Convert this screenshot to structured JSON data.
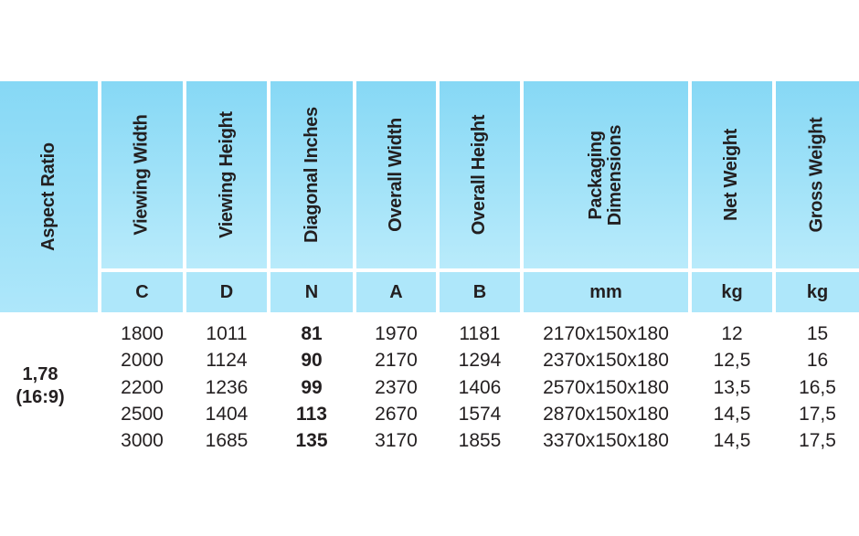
{
  "headers": {
    "aspect_ratio": "Aspect Ratio",
    "viewing_width": "Viewing Width",
    "viewing_height": "Viewing Height",
    "diagonal_inches": "Diagonal Inches",
    "overall_width": "Overall Width",
    "overall_height": "Overall Height",
    "packaging_line1": "Packaging",
    "packaging_line2": "Dimensions",
    "net_weight": "Net Weight",
    "gross_weight": "Gross Weight"
  },
  "units": {
    "viewing_width": "C",
    "viewing_height": "D",
    "diagonal_inches": "N",
    "overall_width": "A",
    "overall_height": "B",
    "packaging": "mm",
    "net_weight": "kg",
    "gross_weight": "kg"
  },
  "aspect": {
    "line1": "1,78",
    "line2": "(16:9)"
  },
  "rows": [
    {
      "vw": "1800",
      "vh": "1011",
      "diag": "81",
      "ow": "1970",
      "oh": "1181",
      "pack": "2170x150x180",
      "net": "12",
      "gross": "15"
    },
    {
      "vw": "2000",
      "vh": "1124",
      "diag": "90",
      "ow": "2170",
      "oh": "1294",
      "pack": "2370x150x180",
      "net": "12,5",
      "gross": "16"
    },
    {
      "vw": "2200",
      "vh": "1236",
      "diag": "99",
      "ow": "2370",
      "oh": "1406",
      "pack": "2570x150x180",
      "net": "13,5",
      "gross": "16,5"
    },
    {
      "vw": "2500",
      "vh": "1404",
      "diag": "113",
      "ow": "2670",
      "oh": "1574",
      "pack": "2870x150x180",
      "net": "14,5",
      "gross": "17,5"
    },
    {
      "vw": "3000",
      "vh": "1685",
      "diag": "135",
      "ow": "3170",
      "oh": "1855",
      "pack": "3370x150x180",
      "net": "14,5",
      "gross": "17,5"
    }
  ]
}
